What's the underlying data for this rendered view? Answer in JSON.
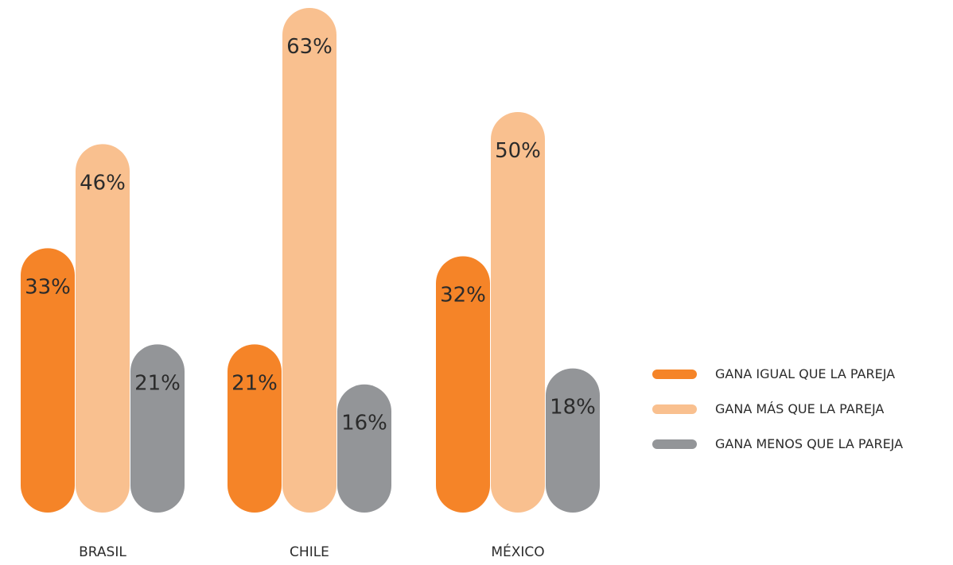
{
  "chart_data": {
    "type": "bar",
    "categories": [
      "BRASIL",
      "CHILE",
      "MÉXICO"
    ],
    "series": [
      {
        "name": "GANA IGUAL QUE LA PAREJA",
        "values": [
          33,
          21,
          32
        ],
        "labels": [
          "33%",
          "21%",
          "32%"
        ],
        "color": "#f58428"
      },
      {
        "name": "GANA MÁS QUE LA PAREJA",
        "values": [
          46,
          63,
          50
        ],
        "labels": [
          "46%",
          "63%",
          "50%"
        ],
        "color": "#f9c08f"
      },
      {
        "name": "GANA MENOS QUE LA PAREJA",
        "values": [
          21,
          16,
          18
        ],
        "labels": [
          "21%",
          "16%",
          "18%"
        ],
        "color": "#939598"
      }
    ],
    "ylim": [
      0,
      63
    ],
    "unit": "%",
    "grid": false,
    "legend_position": "right"
  }
}
